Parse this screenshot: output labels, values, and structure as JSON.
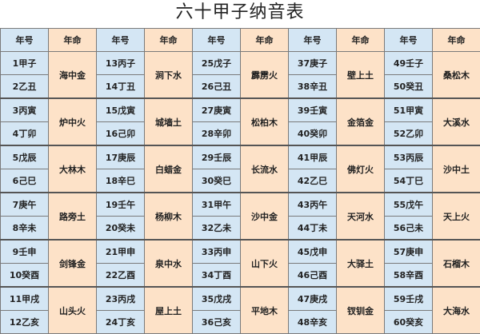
{
  "title": "六十甲子纳音表",
  "headers": [
    "年号",
    "年命",
    "年号",
    "年命",
    "年号",
    "年命",
    "年号",
    "年命",
    "年号",
    "年命"
  ],
  "colors": {
    "year_cell": "#d4e6f4",
    "nayin_cell": "#fde2c8"
  },
  "groups": [
    {
      "pairs": [
        [
          "1甲子",
          "2乙丑",
          "海中金"
        ],
        [
          "3丙寅",
          "4丁卯",
          "炉中火"
        ],
        [
          "5戊辰",
          "6己巳",
          "大林木"
        ],
        [
          "7庚午",
          "8辛未",
          "路旁土"
        ],
        [
          "9壬申",
          "10癸酉",
          "剑锋金"
        ],
        [
          "11甲戌",
          "12乙亥",
          "山头火"
        ]
      ]
    },
    {
      "pairs": [
        [
          "13丙子",
          "14丁丑",
          "涧下水"
        ],
        [
          "15戊寅",
          "16己卯",
          "城墙土"
        ],
        [
          "17庚辰",
          "18辛巳",
          "白蜡金"
        ],
        [
          "19壬午",
          "20癸未",
          "杨柳木"
        ],
        [
          "21甲申",
          "22乙酉",
          "泉中水"
        ],
        [
          "23丙戌",
          "24丁亥",
          "屋上土"
        ]
      ]
    },
    {
      "pairs": [
        [
          "25戊子",
          "26己丑",
          "霹雳火"
        ],
        [
          "27庚寅",
          "28辛卯",
          "松柏木"
        ],
        [
          "29壬辰",
          "30癸巳",
          "长流水"
        ],
        [
          "31甲午",
          "32乙未",
          "沙中金"
        ],
        [
          "33丙申",
          "34丁酉",
          "山下火"
        ],
        [
          "35戊戌",
          "36己亥",
          "平地木"
        ]
      ]
    },
    {
      "pairs": [
        [
          "37庚子",
          "38辛丑",
          "壁上土"
        ],
        [
          "39壬寅",
          "40癸卯",
          "金箔金"
        ],
        [
          "41甲辰",
          "42乙巳",
          "佛灯火"
        ],
        [
          "43丙午",
          "44丁未",
          "天河水"
        ],
        [
          "45戊申",
          "46己酉",
          "大驿土"
        ],
        [
          "47庚戌",
          "48辛亥",
          "钗钏金"
        ]
      ]
    },
    {
      "pairs": [
        [
          "49壬子",
          "50癸丑",
          "桑松木"
        ],
        [
          "51甲寅",
          "52乙卯",
          "大溪水"
        ],
        [
          "53丙辰",
          "54丁巳",
          "沙中土"
        ],
        [
          "55戊午",
          "56己未",
          "天上火"
        ],
        [
          "57庚申",
          "58辛酉",
          "石榴木"
        ],
        [
          "59壬戌",
          "60癸亥",
          "大海水"
        ]
      ]
    }
  ]
}
